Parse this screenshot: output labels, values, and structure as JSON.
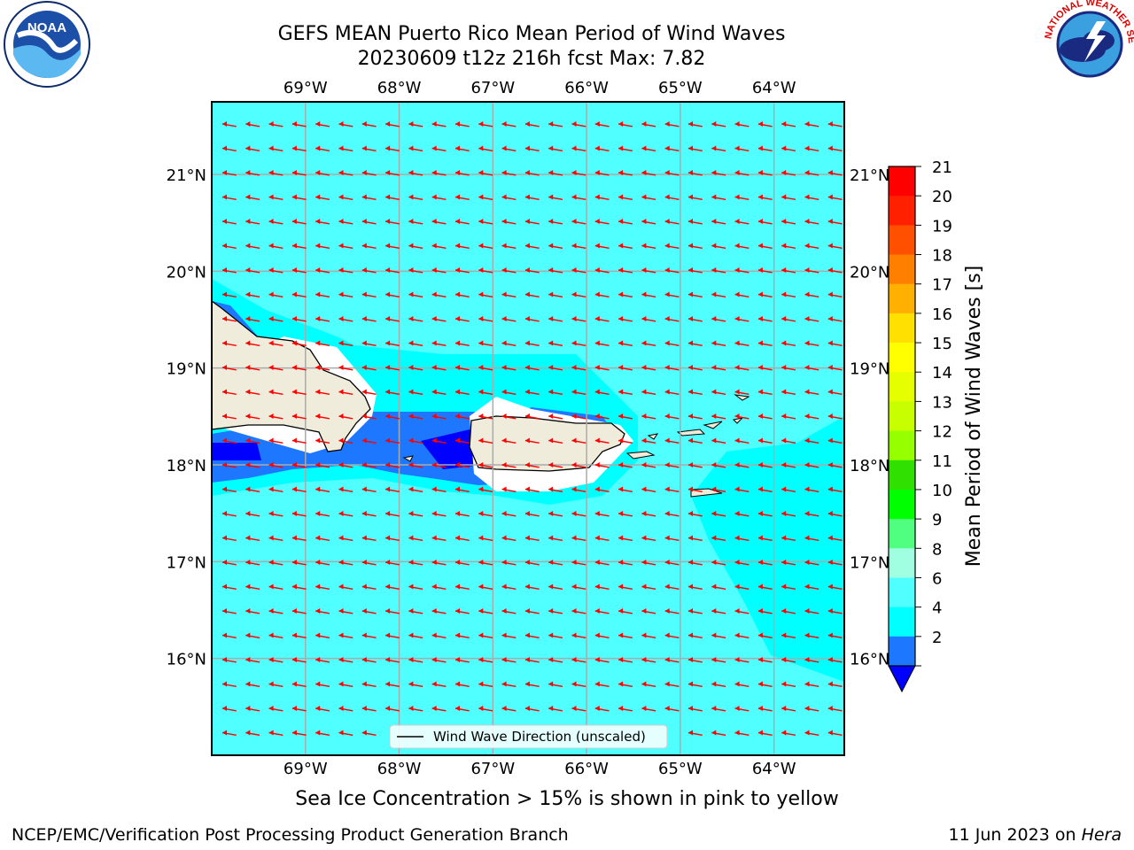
{
  "header": {
    "title_line1": "GEFS MEAN Puerto Rico Mean Period of Wind Waves",
    "title_line2": "20230609 t12z 216h fcst   Max: 7.82"
  },
  "logos": {
    "left": {
      "text": "NOAA",
      "ring_text": "NATIONAL OCEANIC AND ATMOSPHERIC ADMINISTRATION",
      "lower_ring_text": "U.S. DEPARTMENT OF COMMERCE",
      "icon": "noaa-logo"
    },
    "right": {
      "ring_text": "NATIONAL WEATHER SERVICE",
      "icon": "nws-logo"
    }
  },
  "map": {
    "lon_labels": [
      "69°W",
      "68°W",
      "67°W",
      "66°W",
      "65°W",
      "64°W"
    ],
    "lat_labels": [
      "21°N",
      "20°N",
      "19°N",
      "18°N",
      "17°N",
      "16°N"
    ],
    "lon_range": [
      -70.0,
      -63.25
    ],
    "lat_range": [
      15.0,
      21.75
    ],
    "grid": true,
    "legend": {
      "label": "Wind Wave Direction (unscaled)",
      "placement": "bottom-center"
    },
    "arrow_color": "#ff0000",
    "land_color": "#efecdc",
    "ocean_color": "#00ffff"
  },
  "colorbar": {
    "label": "Mean Period of Wind Waves [s]",
    "ticks": [
      "21",
      "20",
      "19",
      "18",
      "17",
      "16",
      "15",
      "14",
      "13",
      "12",
      "11",
      "10",
      "9",
      "8",
      "6",
      "4",
      "2"
    ],
    "colors": [
      "#ff0000",
      "#ff2000",
      "#ff5000",
      "#ff8000",
      "#ffb000",
      "#ffe000",
      "#ffff00",
      "#e6ff00",
      "#c8ff00",
      "#96ff00",
      "#30e000",
      "#00ff00",
      "#50ff80",
      "#a0ffe0",
      "#50ffff",
      "#00ffff",
      "#1e78ff"
    ],
    "extend_color": "#0000ff"
  },
  "subtitle": "Sea Ice Concentration > 15% is shown in pink to yellow",
  "footer": {
    "left": "NCEP/EMC/Verification Post Processing Product Generation Branch",
    "right_date": "11 Jun 2023 on ",
    "right_host": "Hera"
  }
}
